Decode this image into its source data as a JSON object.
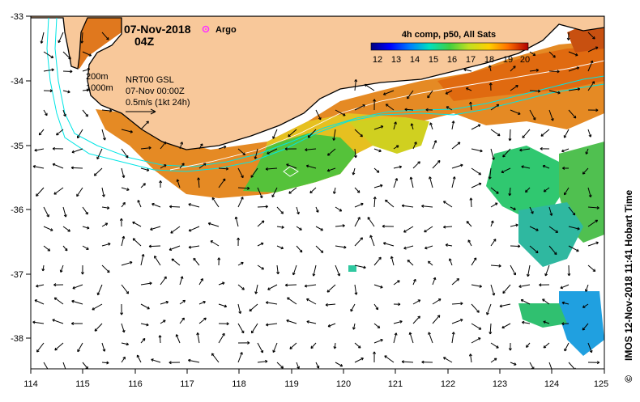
{
  "header": {
    "date": "07-Nov-2018",
    "hour": "04Z",
    "argo_label": "Argo"
  },
  "colorbar": {
    "title": "4h comp, p50, All Sats",
    "ticks": [
      "12",
      "13",
      "14",
      "15",
      "16",
      "17",
      "18",
      "19",
      "20"
    ],
    "min": 12,
    "max": 20
  },
  "info": {
    "depth1": "200m",
    "depth2": "1000m",
    "product": "NRT00 GSL",
    "timestamp": "07-Nov 00:00Z",
    "scale": "0.5m/s (1kt 24h)"
  },
  "side_label": "IMOS 12-Nov-2018 11:41 Hobart Time",
  "copyright": "©",
  "axes": {
    "lon_ticks": [
      "114",
      "115",
      "116",
      "117",
      "118",
      "119",
      "120",
      "121",
      "122",
      "123",
      "124",
      "125"
    ],
    "lat_ticks": [
      "-33",
      "-34",
      "-35",
      "-36",
      "-37",
      "-38"
    ]
  },
  "colors": {
    "land": "#f8c89a",
    "coast": "#000000",
    "isobath": "#00e5e5",
    "argo": "#ff33ff",
    "arrow": "#000000"
  },
  "legend_items": {
    "argo_icon": "argo-float-icon"
  }
}
